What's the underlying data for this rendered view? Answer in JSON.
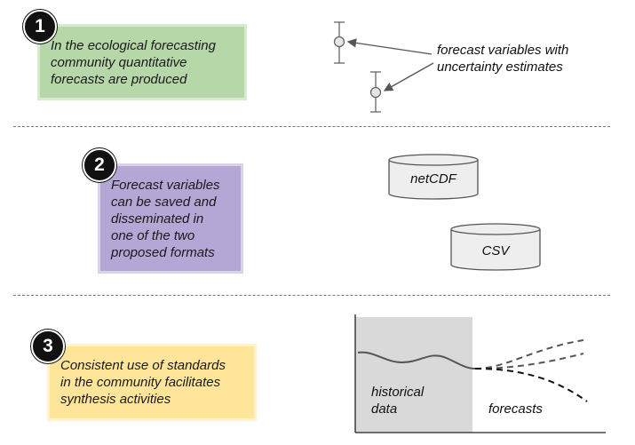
{
  "steps": [
    {
      "number": "1",
      "text": "In the ecological forecasting\ncommunity quantitative\nforecasts are produced",
      "color": "#b6d7a8",
      "border": "#d9ead3"
    },
    {
      "number": "2",
      "text": "Forecast variables\ncan be saved and\ndisseminated in\none of the two\nproposed formats",
      "color": "#b4a7d6",
      "border": "#d9d2e9"
    },
    {
      "number": "3",
      "text": "Consistent use of standards\nin the community facilitates\nsynthesis activities",
      "color": "#ffe599",
      "border": "#fff2cc"
    }
  ],
  "panel1": {
    "callout": "forecast variables with\nuncertainty estimates"
  },
  "panel2": {
    "formats": [
      "netCDF",
      "CSV"
    ]
  },
  "panel3": {
    "historical_label": "historical\ndata",
    "forecast_label": "forecasts"
  },
  "colors": {
    "historical_fill": "#d9d9d9",
    "line_color": "#555555",
    "cylinder_fill": "#eeeeee"
  }
}
